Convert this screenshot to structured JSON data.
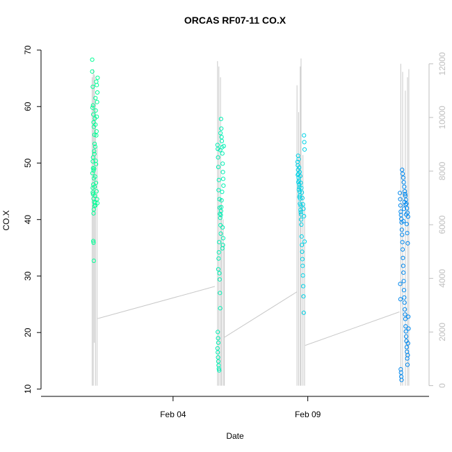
{
  "chart_data": {
    "type": "scatter",
    "title": "ORCAS RF07-11 CO.X",
    "xlabel": "Date",
    "ylabel": "CO.X",
    "x_ticks": [
      "Feb 04",
      "Feb 09"
    ],
    "y_ticks": [
      10,
      20,
      30,
      40,
      50,
      60,
      70
    ],
    "y2_ticks": [
      0,
      2000,
      4000,
      6000,
      8000,
      10000,
      12000
    ],
    "x_range_days": [
      -0.9,
      13.5
    ],
    "x_tick_days": [
      4,
      9
    ],
    "ylim": [
      8.7,
      71.6
    ],
    "y2lim": [
      -400,
      12850
    ],
    "grid": false,
    "series": [
      {
        "flight_start_day": 1.0,
        "flight_end_day": 1.2,
        "point_color": "#00ff96",
        "points": [
          [
            1.0,
            68.3
          ],
          [
            1.0,
            66.2
          ],
          [
            1.02,
            63.5
          ],
          [
            1.03,
            60.2
          ],
          [
            1.01,
            59.8
          ],
          [
            1.04,
            58.6
          ],
          [
            1.05,
            57.2
          ],
          [
            1.06,
            56.4
          ],
          [
            1.08,
            55.0
          ],
          [
            1.07,
            52.1
          ],
          [
            1.02,
            50.3
          ],
          [
            1.03,
            49.1
          ],
          [
            1.05,
            48.7
          ],
          [
            1.06,
            47.3
          ],
          [
            1.04,
            46.2
          ],
          [
            1.02,
            45.6
          ],
          [
            1.03,
            44.5
          ],
          [
            1.05,
            43.7
          ],
          [
            1.07,
            43.1
          ],
          [
            1.08,
            42.4
          ],
          [
            1.06,
            41.8
          ],
          [
            1.05,
            41.1
          ],
          [
            1.09,
            45.8
          ],
          [
            1.1,
            44.2
          ],
          [
            1.11,
            43.0
          ],
          [
            1.12,
            42.5
          ],
          [
            1.13,
            50.4
          ],
          [
            1.14,
            49.8
          ],
          [
            1.15,
            54.9
          ],
          [
            1.16,
            55.6
          ],
          [
            1.17,
            58.2
          ],
          [
            1.18,
            60.8
          ],
          [
            1.19,
            62.5
          ],
          [
            1.2,
            65.1
          ],
          [
            1.17,
            63.8
          ],
          [
            1.15,
            64.4
          ],
          [
            1.12,
            61.5
          ],
          [
            1.1,
            57.9
          ],
          [
            1.09,
            53.4
          ],
          [
            1.08,
            51.6
          ],
          [
            1.07,
            49.0
          ],
          [
            1.11,
            47.6
          ],
          [
            1.14,
            46.5
          ],
          [
            1.16,
            45.0
          ],
          [
            1.18,
            43.6
          ],
          [
            1.19,
            42.9
          ],
          [
            1.04,
            36.2
          ],
          [
            1.05,
            35.9
          ],
          [
            1.06,
            32.7
          ],
          [
            1.13,
            59.3
          ],
          [
            1.12,
            56.8
          ],
          [
            1.11,
            52.9
          ],
          [
            1.03,
            51.0
          ],
          [
            1.01,
            48.2
          ],
          [
            1.02,
            44.8
          ]
        ]
      },
      {
        "flight_start_day": 5.6,
        "flight_end_day": 5.9,
        "point_color": "#00f0b4",
        "points": [
          [
            5.65,
            53.2
          ],
          [
            5.66,
            52.5
          ],
          [
            5.67,
            51.0
          ],
          [
            5.68,
            49.3
          ],
          [
            5.7,
            47.0
          ],
          [
            5.69,
            45.2
          ],
          [
            5.72,
            43.6
          ],
          [
            5.73,
            42.1
          ],
          [
            5.74,
            41.0
          ],
          [
            5.75,
            40.3
          ],
          [
            5.76,
            39.0
          ],
          [
            5.77,
            37.5
          ],
          [
            5.71,
            36.0
          ],
          [
            5.7,
            34.2
          ],
          [
            5.69,
            33.1
          ],
          [
            5.68,
            31.2
          ],
          [
            5.72,
            30.5
          ],
          [
            5.73,
            29.4
          ],
          [
            5.74,
            27.0
          ],
          [
            5.75,
            24.3
          ],
          [
            5.66,
            20.1
          ],
          [
            5.67,
            19.0
          ],
          [
            5.68,
            18.2
          ],
          [
            5.65,
            17.2
          ],
          [
            5.66,
            16.5
          ],
          [
            5.67,
            15.6
          ],
          [
            5.68,
            14.9
          ],
          [
            5.69,
            14.2
          ],
          [
            5.7,
            13.6
          ],
          [
            5.71,
            13.3
          ],
          [
            5.78,
            57.8
          ],
          [
            5.79,
            56.1
          ],
          [
            5.8,
            54.6
          ],
          [
            5.81,
            53.9
          ],
          [
            5.82,
            52.8
          ],
          [
            5.83,
            51.7
          ],
          [
            5.84,
            49.9
          ],
          [
            5.85,
            48.4
          ],
          [
            5.86,
            47.2
          ],
          [
            5.87,
            46.0
          ],
          [
            5.82,
            44.9
          ],
          [
            5.8,
            43.4
          ],
          [
            5.79,
            42.2
          ],
          [
            5.78,
            41.5
          ],
          [
            5.77,
            40.8
          ],
          [
            5.84,
            38.6
          ],
          [
            5.86,
            36.7
          ],
          [
            5.85,
            35.5
          ],
          [
            5.83,
            34.9
          ],
          [
            5.88,
            53.0
          ],
          [
            5.76,
            55.3
          ],
          [
            5.75,
            52.3
          ]
        ]
      },
      {
        "flight_start_day": 8.6,
        "flight_end_day": 8.9,
        "point_color": "#00d2e6",
        "points": [
          [
            8.62,
            50.2
          ],
          [
            8.63,
            49.6
          ],
          [
            8.64,
            48.8
          ],
          [
            8.65,
            48.1
          ],
          [
            8.66,
            47.4
          ],
          [
            8.67,
            46.9
          ],
          [
            8.68,
            46.2
          ],
          [
            8.69,
            45.7
          ],
          [
            8.7,
            44.9
          ],
          [
            8.71,
            44.3
          ],
          [
            8.72,
            43.7
          ],
          [
            8.73,
            42.5
          ],
          [
            8.74,
            41.3
          ],
          [
            8.75,
            40.0
          ],
          [
            8.76,
            39.1
          ],
          [
            8.77,
            37.0
          ],
          [
            8.78,
            35.5
          ],
          [
            8.79,
            34.3
          ],
          [
            8.8,
            33.0
          ],
          [
            8.81,
            31.8
          ],
          [
            8.82,
            30.1
          ],
          [
            8.83,
            28.2
          ],
          [
            8.84,
            26.4
          ],
          [
            8.85,
            23.5
          ],
          [
            8.86,
            54.9
          ],
          [
            8.87,
            53.7
          ],
          [
            8.88,
            52.4
          ],
          [
            8.64,
            51.3
          ],
          [
            8.66,
            50.7
          ],
          [
            8.68,
            49.2
          ],
          [
            8.7,
            48.4
          ],
          [
            8.72,
            47.7
          ],
          [
            8.74,
            46.5
          ],
          [
            8.76,
            45.6
          ],
          [
            8.78,
            44.8
          ],
          [
            8.8,
            43.8
          ],
          [
            8.82,
            42.7
          ],
          [
            8.84,
            41.9
          ],
          [
            8.86,
            40.6
          ],
          [
            8.88,
            36.1
          ],
          [
            8.63,
            47.9
          ],
          [
            8.65,
            46.6
          ],
          [
            8.67,
            45.3
          ],
          [
            8.69,
            44.0
          ],
          [
            8.71,
            42.8
          ],
          [
            8.73,
            41.7
          ],
          [
            8.75,
            40.9
          ]
        ]
      },
      {
        "flight_start_day": 12.4,
        "flight_end_day": 12.75,
        "point_color": "#0088ee",
        "points": [
          [
            12.42,
            44.7
          ],
          [
            12.43,
            43.6
          ],
          [
            12.44,
            42.5
          ],
          [
            12.45,
            41.4
          ],
          [
            12.46,
            40.8
          ],
          [
            12.47,
            40.1
          ],
          [
            12.48,
            39.5
          ],
          [
            12.49,
            38.2
          ],
          [
            12.5,
            37.3
          ],
          [
            12.51,
            36.0
          ],
          [
            12.52,
            34.7
          ],
          [
            12.53,
            33.2
          ],
          [
            12.54,
            31.8
          ],
          [
            12.55,
            30.6
          ],
          [
            12.56,
            29.1
          ],
          [
            12.57,
            27.5
          ],
          [
            12.58,
            26.2
          ],
          [
            12.59,
            25.3
          ],
          [
            12.6,
            24.1
          ],
          [
            12.61,
            23.2
          ],
          [
            12.62,
            22.4
          ],
          [
            12.63,
            21.1
          ],
          [
            12.64,
            20.2
          ],
          [
            12.65,
            19.3
          ],
          [
            12.66,
            18.5
          ],
          [
            12.67,
            17.4
          ],
          [
            12.68,
            16.6
          ],
          [
            12.69,
            15.4
          ],
          [
            12.7,
            14.3
          ],
          [
            12.45,
            13.5
          ],
          [
            12.46,
            12.9
          ],
          [
            12.47,
            12.2
          ],
          [
            12.48,
            11.6
          ],
          [
            12.5,
            48.8
          ],
          [
            12.52,
            48.1
          ],
          [
            12.54,
            47.4
          ],
          [
            12.56,
            46.6
          ],
          [
            12.58,
            45.8
          ],
          [
            12.6,
            45.0
          ],
          [
            12.62,
            44.2
          ],
          [
            12.64,
            43.5
          ],
          [
            12.66,
            42.8
          ],
          [
            12.68,
            42.0
          ],
          [
            12.7,
            41.2
          ],
          [
            12.72,
            40.5
          ],
          [
            12.55,
            39.7
          ],
          [
            12.57,
            41.9
          ],
          [
            12.59,
            43.1
          ],
          [
            12.61,
            44.5
          ],
          [
            12.63,
            42.6
          ],
          [
            12.65,
            40.9
          ],
          [
            12.67,
            39.2
          ],
          [
            12.69,
            37.6
          ],
          [
            12.71,
            35.8
          ],
          [
            12.73,
            22.8
          ],
          [
            12.74,
            20.7
          ],
          [
            12.72,
            18.1
          ],
          [
            12.71,
            16.0
          ],
          [
            12.43,
            28.6
          ],
          [
            12.44,
            25.9
          ]
        ]
      }
    ],
    "altitude_series": {
      "color": "#c8c8c8",
      "connectors": [
        [
          [
            1.2,
            2500
          ],
          [
            5.55,
            3700
          ]
        ],
        [
          [
            5.9,
            1800
          ],
          [
            8.6,
            3500
          ]
        ],
        [
          [
            8.9,
            1500
          ],
          [
            12.4,
            2750
          ]
        ]
      ],
      "spikes": [
        [
          1.0,
          0,
          11500
        ],
        [
          1.04,
          0,
          11800
        ],
        [
          1.08,
          1600,
          11600
        ],
        [
          1.12,
          0,
          10600
        ],
        [
          1.18,
          0,
          8900
        ],
        [
          5.65,
          0,
          12100
        ],
        [
          5.7,
          0,
          11900
        ],
        [
          5.76,
          0,
          11500
        ],
        [
          5.8,
          0,
          7000
        ],
        [
          5.86,
          0,
          6200
        ],
        [
          5.9,
          0,
          5300
        ],
        [
          8.6,
          0,
          11200
        ],
        [
          8.66,
          0,
          10200
        ],
        [
          8.72,
          0,
          11900
        ],
        [
          8.75,
          0,
          12200
        ],
        [
          8.82,
          0,
          8600
        ],
        [
          8.88,
          0,
          6800
        ],
        [
          12.45,
          0,
          12000
        ],
        [
          12.52,
          0,
          11700
        ],
        [
          12.62,
          0,
          11000
        ],
        [
          12.7,
          0,
          11500
        ],
        [
          12.75,
          0,
          11800
        ]
      ]
    }
  }
}
